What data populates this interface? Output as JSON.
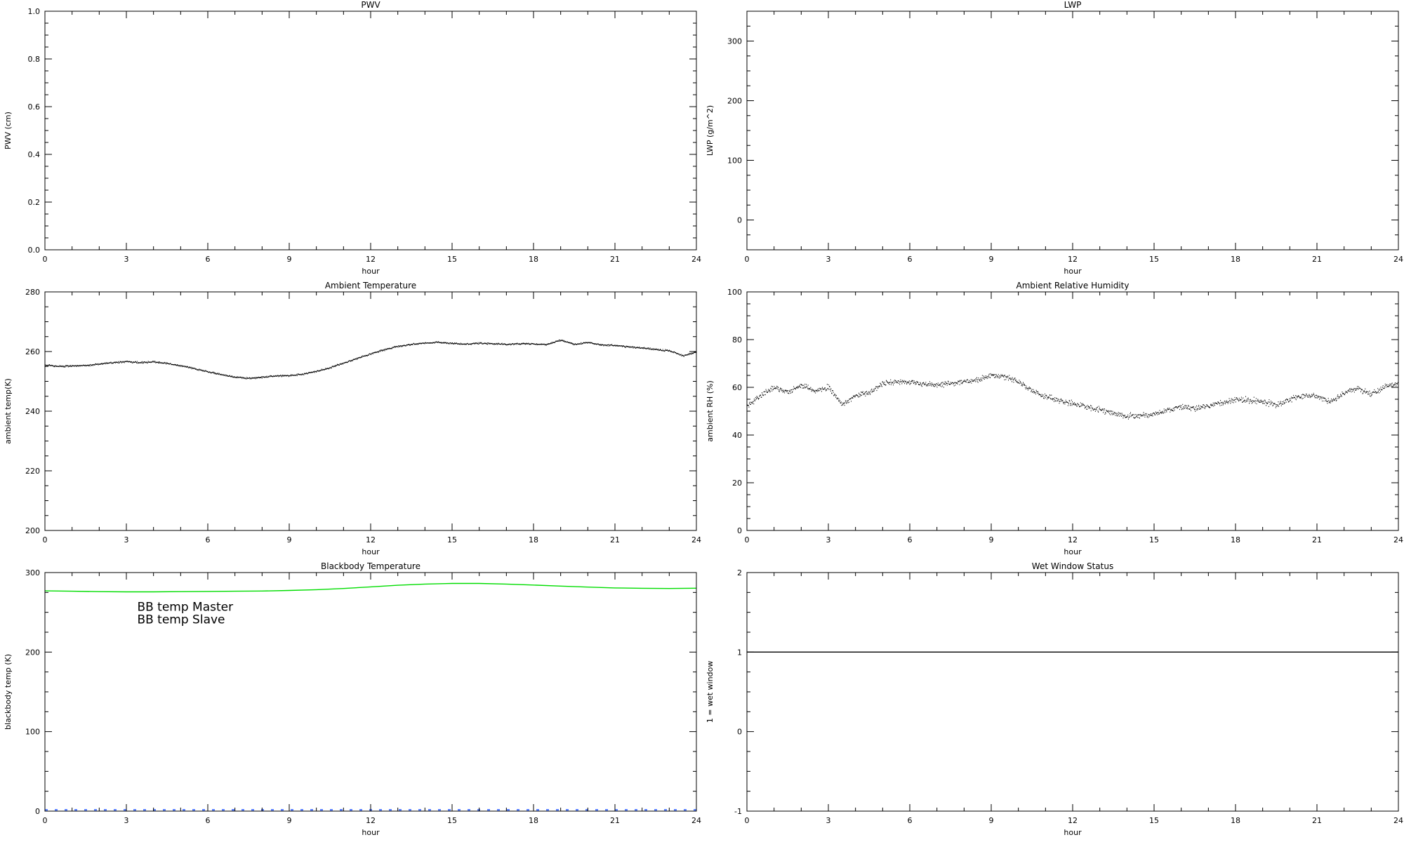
{
  "page": {
    "background": "#ffffff"
  },
  "colors": {
    "axis": "#000000",
    "bb_master_blue": "#3d6bff",
    "bb_slave_green": "#00dd00"
  },
  "chart_data": [
    {
      "id": "pwv",
      "type": "line",
      "title": "PWV",
      "xlabel": "hour",
      "ylabel": "PWV (cm)",
      "xlim": [
        0,
        24
      ],
      "ylim": [
        0,
        1
      ],
      "xticks": [
        0,
        3,
        6,
        9,
        12,
        15,
        18,
        21,
        24
      ],
      "xtick_labels": [
        "0",
        "3",
        "6",
        "9",
        "12",
        "15",
        "18",
        "21",
        "24"
      ],
      "yticks": [
        0,
        0.2,
        0.4,
        0.6,
        0.8,
        1.0
      ],
      "ytick_labels": [
        "0.0",
        "0.2",
        "0.4",
        "0.6",
        "0.8",
        "1.0"
      ],
      "xminor": 1,
      "yminor": 0.05,
      "grid": false,
      "series": []
    },
    {
      "id": "lwp",
      "type": "line",
      "title": "LWP",
      "xlabel": "hour",
      "ylabel": "LWP (g/m^2)",
      "xlim": [
        0,
        24
      ],
      "ylim": [
        -50,
        350
      ],
      "xticks": [
        0,
        3,
        6,
        9,
        12,
        15,
        18,
        21,
        24
      ],
      "xtick_labels": [
        "0",
        "3",
        "6",
        "9",
        "12",
        "15",
        "18",
        "21",
        "24"
      ],
      "yticks": [
        0,
        100,
        200,
        300
      ],
      "ytick_labels": [
        "0",
        "100",
        "200",
        "300"
      ],
      "xminor": 1,
      "yminor": 25,
      "grid": false,
      "series": []
    },
    {
      "id": "ambient-temp",
      "type": "scatter",
      "title": "Ambient Temperature",
      "xlabel": "hour",
      "ylabel": "ambient temp(K)",
      "xlim": [
        0,
        24
      ],
      "ylim": [
        200,
        280
      ],
      "xticks": [
        0,
        3,
        6,
        9,
        12,
        15,
        18,
        21,
        24
      ],
      "xtick_labels": [
        "0",
        "3",
        "6",
        "9",
        "12",
        "15",
        "18",
        "21",
        "24"
      ],
      "yticks": [
        200,
        220,
        240,
        260,
        280
      ],
      "ytick_labels": [
        "200",
        "220",
        "240",
        "260",
        "280"
      ],
      "xminor": 1,
      "yminor": 5,
      "grid": false,
      "series": [
        {
          "name": "ambient-temp-K",
          "type": "dots",
          "color": "#000000",
          "x_start": 0,
          "x_step": 0.5,
          "noise": 0.25,
          "samples": 1500,
          "seed": 11,
          "width": 1.3,
          "y": [
            255.5,
            255.0,
            255.2,
            255.3,
            255.8,
            256.3,
            256.6,
            256.3,
            256.5,
            256.0,
            255.2,
            254.3,
            253.2,
            252.2,
            251.4,
            251.0,
            251.4,
            251.8,
            251.9,
            252.4,
            253.3,
            254.6,
            256.1,
            257.7,
            259.2,
            260.6,
            261.7,
            262.4,
            262.9,
            263.1,
            262.7,
            262.5,
            262.8,
            262.6,
            262.4,
            262.6,
            262.5,
            262.4,
            263.8,
            262.4,
            263.0,
            262.2,
            262.0,
            261.6,
            261.2,
            260.7,
            260.2,
            258.6,
            259.8
          ]
        }
      ]
    },
    {
      "id": "ambient-rh",
      "type": "scatter",
      "title": "Ambient Relative Humidity",
      "xlabel": "hour",
      "ylabel": "ambient RH (%)",
      "xlim": [
        0,
        24
      ],
      "ylim": [
        0,
        100
      ],
      "xticks": [
        0,
        3,
        6,
        9,
        12,
        15,
        18,
        21,
        24
      ],
      "xtick_labels": [
        "0",
        "3",
        "6",
        "9",
        "12",
        "15",
        "18",
        "21",
        "24"
      ],
      "yticks": [
        0,
        20,
        40,
        60,
        80,
        100
      ],
      "ytick_labels": [
        "0",
        "20",
        "40",
        "60",
        "80",
        "100"
      ],
      "xminor": 1,
      "yminor": 5,
      "grid": false,
      "series": [
        {
          "name": "ambient-rh-pct",
          "type": "dots",
          "color": "#000000",
          "x_start": 0,
          "x_step": 0.5,
          "noise": 1.1,
          "samples": 1500,
          "seed": 22,
          "width": 1.3,
          "y": [
            52,
            56.5,
            60,
            58,
            61,
            58.5,
            60,
            52.5,
            56.5,
            57.5,
            61.5,
            62.5,
            62,
            61.5,
            61,
            61.5,
            62.5,
            63,
            65,
            64.5,
            62.5,
            58.5,
            56,
            54.5,
            53,
            52,
            50.5,
            49,
            48,
            48,
            48.5,
            50.5,
            52,
            51,
            52.5,
            53.5,
            55,
            54.5,
            54,
            52.5,
            55,
            56.5,
            56.5,
            54,
            57.5,
            59.5,
            57,
            60.5,
            61.5
          ]
        }
      ]
    },
    {
      "id": "blackbody",
      "type": "line",
      "title": "Blackbody Temperature",
      "xlabel": "hour",
      "ylabel": "blackbody temp (K)",
      "xlim": [
        0,
        24
      ],
      "ylim": [
        0,
        300
      ],
      "xticks": [
        0,
        3,
        6,
        9,
        12,
        15,
        18,
        21,
        24
      ],
      "xtick_labels": [
        "0",
        "3",
        "6",
        "9",
        "12",
        "15",
        "18",
        "21",
        "24"
      ],
      "yticks": [
        0,
        100,
        200,
        300
      ],
      "ytick_labels": [
        "0",
        "100",
        "200",
        "300"
      ],
      "xminor": 1,
      "yminor": 25,
      "grid": false,
      "legend_position": "upper-left-inside",
      "legend": [
        {
          "label": "BB temp Master",
          "color": "#3d6bff",
          "x": 3.4,
          "y": 252
        },
        {
          "label": "BB temp Slave",
          "color": "#00dd00",
          "x": 3.4,
          "y": 236
        }
      ],
      "series": [
        {
          "name": "bb-temp-master",
          "type": "line",
          "color": "#3d6bff",
          "x_start": 0,
          "x_step": 24,
          "width": 2,
          "dash": "4 10",
          "y": [
            1.5,
            1.5
          ]
        },
        {
          "name": "bb-temp-slave",
          "type": "line",
          "color": "#00dd00",
          "x_start": 0,
          "x_step": 1,
          "width": 1.4,
          "y": [
            277,
            276.5,
            276,
            275.7,
            275.7,
            276,
            276.3,
            276.5,
            276.8,
            277.5,
            278.5,
            280,
            282,
            284,
            285.5,
            286.3,
            286.3,
            285.5,
            284.3,
            283,
            281.7,
            280.7,
            280.2,
            280,
            280.3
          ]
        }
      ]
    },
    {
      "id": "wet-window",
      "type": "line",
      "title": "Wet Window Status",
      "xlabel": "hour",
      "ylabel": "1 = wet window",
      "xlim": [
        0,
        24
      ],
      "ylim": [
        -1,
        2
      ],
      "xticks": [
        0,
        3,
        6,
        9,
        12,
        15,
        18,
        21,
        24
      ],
      "xtick_labels": [
        "0",
        "3",
        "6",
        "9",
        "12",
        "15",
        "18",
        "21",
        "24"
      ],
      "yticks": [
        -1,
        0,
        1,
        2
      ],
      "ytick_labels": [
        "-1",
        "0",
        "1",
        "2"
      ],
      "xminor": 1,
      "yminor": 0.25,
      "grid": false,
      "series": [
        {
          "name": "wet-window-flag",
          "type": "line",
          "color": "#000000",
          "x_start": 0,
          "x_step": 24,
          "width": 1.4,
          "y": [
            1,
            1
          ]
        }
      ]
    }
  ]
}
